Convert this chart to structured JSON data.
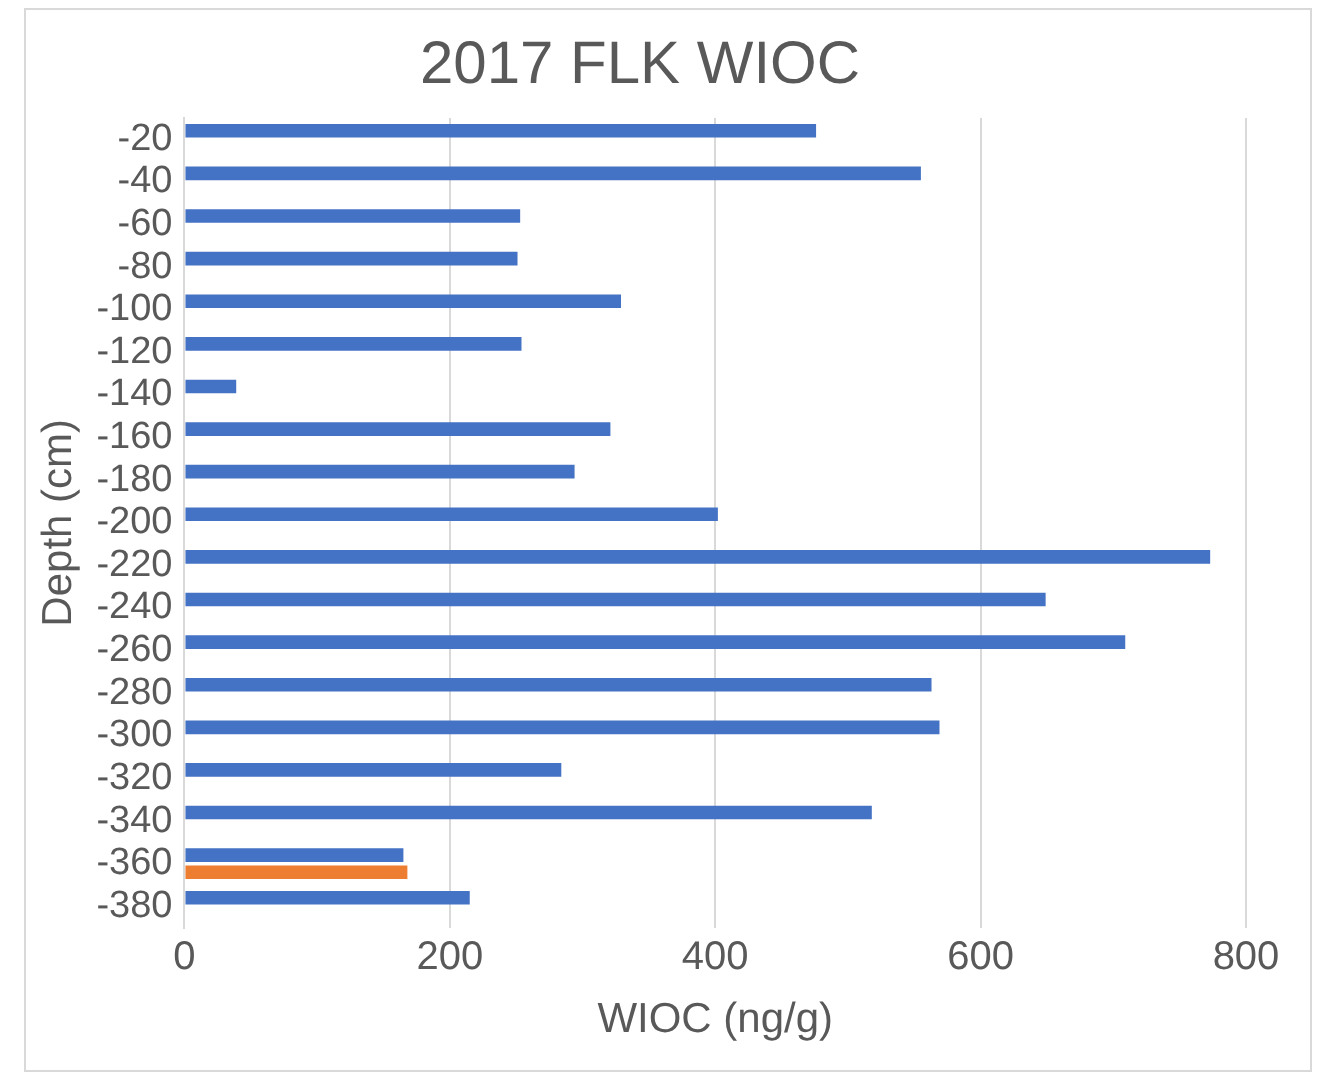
{
  "chart_data": {
    "type": "bar",
    "orientation": "horizontal",
    "title": "2017 FLK WIOC",
    "xlabel": "WIOC (ng/g)",
    "ylabel": "Depth (cm)",
    "categories": [
      "-20",
      "-40",
      "-60",
      "-80",
      "-100",
      "-120",
      "-140",
      "-160",
      "-180",
      "-200",
      "-220",
      "-240",
      "-260",
      "-280",
      "-300",
      "-320",
      "-340",
      "-360",
      "-380"
    ],
    "series": [
      {
        "color": "#4472c4",
        "values": [
          476,
          555,
          253,
          251,
          329,
          254,
          39,
          321,
          294,
          402,
          773,
          649,
          709,
          563,
          569,
          284,
          518,
          165,
          215
        ]
      },
      {
        "color": "#ed7d31",
        "values": [
          null,
          null,
          null,
          null,
          null,
          null,
          null,
          null,
          null,
          null,
          null,
          null,
          null,
          null,
          null,
          null,
          null,
          168,
          null
        ]
      }
    ],
    "xlim": [
      0,
      800
    ],
    "xticks": [
      0,
      200,
      400,
      600,
      800
    ],
    "grid": "x",
    "legend": false
  }
}
